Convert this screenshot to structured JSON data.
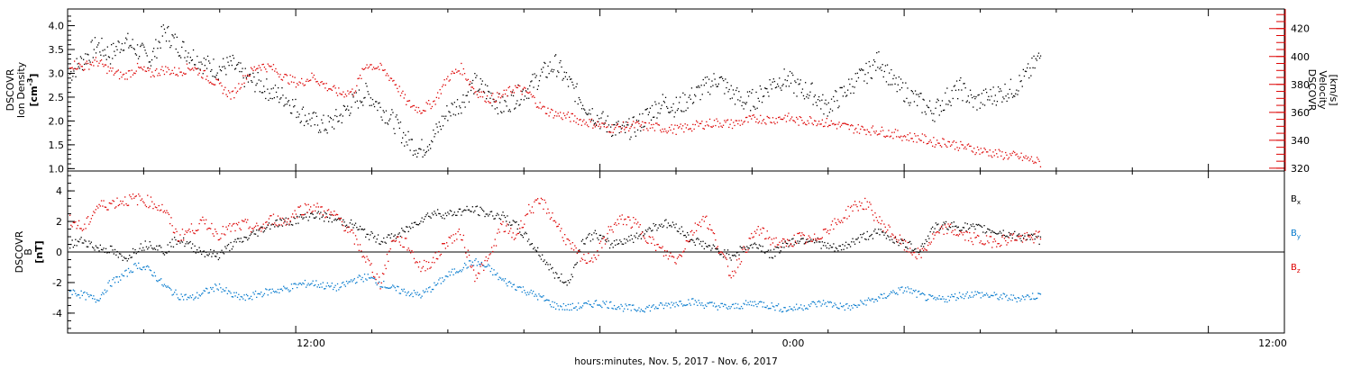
{
  "chart_data": [
    {
      "type": "scatter",
      "panel": "plasma",
      "ylabel_left": [
        "DSCOVR",
        "Ion Density",
        "[cm^-3]"
      ],
      "ylabel_right": [
        "DSCOVR",
        "Velocity",
        "[km/s]"
      ],
      "ylim_left": [
        0.95,
        4.35
      ],
      "ylim_right": [
        318,
        434
      ],
      "yticks_left": [
        "1.0",
        "1.5",
        "2.0",
        "2.5",
        "3.0",
        "3.5",
        "4.0"
      ],
      "yticks_right": [
        "320",
        "340",
        "360",
        "380",
        "400",
        "420"
      ],
      "colors": {
        "density": "#000000",
        "velocity": "#dd0000"
      },
      "series": [
        {
          "key": "density",
          "axis": "left",
          "x": [
            0.0,
            0.5,
            1.0,
            1.5,
            2.0,
            2.5,
            3.0,
            3.5,
            4.0,
            4.5,
            5.0,
            5.5,
            6.0,
            6.5,
            7.0,
            7.5,
            8.0,
            8.5,
            9.0,
            9.5,
            10.0,
            10.5,
            11.0,
            11.5,
            12.0,
            12.5,
            13.0,
            13.5,
            14.0,
            14.5,
            15.0,
            15.5,
            16.0,
            16.5,
            17.0,
            17.5,
            18.0,
            18.5,
            19.0,
            19.5,
            20.0,
            20.5,
            21.0,
            21.5,
            22.0,
            22.5,
            23.0,
            23.5,
            24.0,
            24.5,
            25.0,
            25.5,
            26.0,
            26.5,
            27.0,
            27.5,
            28.0,
            28.5,
            29.0,
            29.5,
            30.0,
            30.5,
            31.0,
            31.5,
            32.0,
            32.5,
            33.0,
            33.5,
            34.0,
            34.5,
            35.0,
            35.5,
            36.0
          ],
          "values": [
            3.0,
            3.3,
            3.6,
            3.4,
            3.7,
            3.5,
            3.3,
            3.9,
            3.6,
            3.4,
            3.2,
            3.1,
            3.2,
            2.9,
            2.8,
            2.6,
            2.5,
            2.2,
            2.0,
            1.9,
            2.1,
            2.4,
            2.6,
            2.3,
            2.0,
            1.6,
            1.4,
            1.7,
            2.2,
            2.4,
            2.8,
            2.6,
            2.3,
            2.5,
            2.7,
            3.0,
            3.2,
            2.8,
            2.4,
            2.1,
            1.9,
            1.8,
            1.9,
            2.2,
            2.4,
            2.3,
            2.5,
            2.7,
            2.9,
            2.6,
            2.4,
            2.5,
            2.8,
            2.9,
            2.7,
            2.6,
            2.3,
            2.5,
            2.8,
            3.0,
            3.3,
            2.8,
            2.6,
            2.4,
            2.2,
            2.5,
            2.7,
            2.4,
            2.5,
            2.6,
            2.7,
            3.0,
            3.4
          ]
        },
        {
          "key": "velocity",
          "axis": "right",
          "x": [
            0.0,
            0.5,
            1.0,
            1.5,
            2.0,
            2.5,
            3.0,
            3.5,
            4.0,
            4.5,
            5.0,
            5.5,
            6.0,
            6.5,
            7.0,
            7.5,
            8.0,
            8.5,
            9.0,
            9.5,
            10.0,
            10.5,
            11.0,
            11.5,
            12.0,
            12.5,
            13.0,
            13.5,
            14.0,
            14.5,
            15.0,
            15.5,
            16.0,
            16.5,
            17.0,
            17.5,
            18.0,
            18.5,
            19.0,
            19.5,
            20.0,
            20.5,
            21.0,
            21.5,
            22.0,
            22.5,
            23.0,
            23.5,
            24.0,
            24.5,
            25.0,
            25.5,
            26.0,
            26.5,
            27.0,
            27.5,
            28.0,
            28.5,
            29.0,
            29.5,
            30.0,
            30.5,
            31.0,
            31.5,
            32.0,
            32.5,
            33.0,
            33.5,
            34.0,
            34.5,
            35.0,
            35.5,
            36.0
          ],
          "values": [
            395,
            393,
            397,
            390,
            386,
            392,
            388,
            391,
            389,
            393,
            387,
            380,
            372,
            386,
            394,
            392,
            385,
            381,
            386,
            379,
            374,
            375,
            395,
            392,
            383,
            367,
            362,
            368,
            385,
            392,
            376,
            370,
            372,
            378,
            374,
            363,
            359,
            357,
            354,
            352,
            349,
            350,
            351,
            350,
            349,
            348,
            350,
            352,
            353,
            352,
            354,
            356,
            355,
            357,
            354,
            355,
            353,
            351,
            349,
            348,
            347,
            345,
            343,
            342,
            339,
            339,
            336,
            334,
            332,
            330,
            329,
            327,
            324
          ]
        }
      ]
    },
    {
      "type": "scatter",
      "panel": "magnetic",
      "ylabel_left": [
        "DSCOVR",
        "B",
        "[nT]"
      ],
      "ylim": [
        -5.3,
        5.3
      ],
      "yticks": [
        "-4",
        "-2",
        "0",
        "2",
        "4"
      ],
      "zero_line": true,
      "colors": {
        "Bx": "#000000",
        "By": "#0077cc",
        "Bz": "#dd0000"
      },
      "series": [
        {
          "name": "Bx",
          "x": [
            0.0,
            0.5,
            1.0,
            1.5,
            2.0,
            2.5,
            3.0,
            3.5,
            4.0,
            4.5,
            5.0,
            5.5,
            6.0,
            6.5,
            7.0,
            7.5,
            8.0,
            8.5,
            9.0,
            9.5,
            10.0,
            10.5,
            11.0,
            11.5,
            12.0,
            12.5,
            13.0,
            13.5,
            14.0,
            14.5,
            15.0,
            15.5,
            16.0,
            16.5,
            17.0,
            17.5,
            18.0,
            18.5,
            19.0,
            19.5,
            20.0,
            20.5,
            21.0,
            21.5,
            22.0,
            22.5,
            23.0,
            23.5,
            24.0,
            24.5,
            25.0,
            25.5,
            26.0,
            26.5,
            27.0,
            27.5,
            28.0,
            28.5,
            29.0,
            29.5,
            30.0,
            30.5,
            31.0,
            31.5,
            32.0,
            32.5,
            33.0,
            33.5,
            34.0,
            34.5,
            35.0,
            35.5,
            36.0
          ],
          "values": [
            0.5,
            0.8,
            0.3,
            0.2,
            -0.5,
            0.3,
            0.6,
            0.1,
            0.9,
            0.4,
            0.0,
            -0.2,
            0.5,
            0.9,
            1.4,
            1.9,
            2.0,
            2.2,
            2.5,
            2.3,
            2.1,
            1.8,
            1.2,
            0.8,
            1.0,
            1.5,
            2.2,
            2.6,
            2.5,
            2.7,
            2.8,
            2.5,
            2.4,
            1.8,
            0.8,
            -0.3,
            -1.5,
            -2.0,
            0.8,
            1.2,
            0.5,
            0.8,
            1.0,
            1.6,
            1.9,
            1.7,
            0.9,
            0.5,
            0.1,
            -0.2,
            0.3,
            0.5,
            -0.2,
            0.6,
            0.8,
            0.9,
            0.4,
            0.2,
            0.7,
            1.1,
            1.3,
            0.9,
            0.5,
            0.2,
            1.6,
            1.8,
            1.7,
            1.6,
            1.5,
            1.3,
            1.1,
            1.0,
            0.8
          ]
        },
        {
          "name": "By",
          "x": [
            0.0,
            0.5,
            1.0,
            1.5,
            2.0,
            2.5,
            3.0,
            3.5,
            4.0,
            4.5,
            5.0,
            5.5,
            6.0,
            6.5,
            7.0,
            7.5,
            8.0,
            8.5,
            9.0,
            9.5,
            10.0,
            10.5,
            11.0,
            11.5,
            12.0,
            12.5,
            13.0,
            13.5,
            14.0,
            14.5,
            15.0,
            15.5,
            16.0,
            16.5,
            17.0,
            17.5,
            18.0,
            18.5,
            19.0,
            19.5,
            20.0,
            20.5,
            21.0,
            21.5,
            22.0,
            22.5,
            23.0,
            23.5,
            24.0,
            24.5,
            25.0,
            25.5,
            26.0,
            26.5,
            27.0,
            27.5,
            28.0,
            28.5,
            29.0,
            29.5,
            30.0,
            30.5,
            31.0,
            31.5,
            32.0,
            32.5,
            33.0,
            33.5,
            34.0,
            34.5,
            35.0,
            35.5,
            36.0
          ],
          "values": [
            -2.5,
            -2.8,
            -3.1,
            -2.0,
            -1.5,
            -0.8,
            -1.2,
            -2.2,
            -2.8,
            -3.0,
            -2.6,
            -2.2,
            -2.8,
            -3.0,
            -2.7,
            -2.5,
            -2.4,
            -2.1,
            -2.0,
            -2.2,
            -2.3,
            -1.8,
            -1.6,
            -2.0,
            -2.4,
            -2.6,
            -2.8,
            -2.2,
            -1.5,
            -1.0,
            -0.6,
            -1.0,
            -1.8,
            -2.2,
            -2.6,
            -3.0,
            -3.5,
            -3.6,
            -3.5,
            -3.3,
            -3.4,
            -3.6,
            -3.7,
            -3.6,
            -3.5,
            -3.3,
            -3.2,
            -3.4,
            -3.5,
            -3.6,
            -3.4,
            -3.3,
            -3.5,
            -3.7,
            -3.6,
            -3.4,
            -3.3,
            -3.5,
            -3.6,
            -3.2,
            -3.0,
            -2.6,
            -2.4,
            -2.8,
            -3.1,
            -3.0,
            -2.8,
            -2.7,
            -2.8,
            -2.9,
            -3.0,
            -2.9,
            -2.8
          ]
        },
        {
          "name": "Bz",
          "x": [
            0.0,
            0.5,
            1.0,
            1.5,
            2.0,
            2.5,
            3.0,
            3.5,
            4.0,
            4.5,
            5.0,
            5.5,
            6.0,
            6.5,
            7.0,
            7.5,
            8.0,
            8.5,
            9.0,
            9.5,
            10.0,
            10.5,
            11.0,
            11.5,
            12.0,
            12.5,
            13.0,
            13.5,
            14.0,
            14.5,
            15.0,
            15.5,
            16.0,
            16.5,
            17.0,
            17.5,
            18.0,
            18.5,
            19.0,
            19.5,
            20.0,
            20.5,
            21.0,
            21.5,
            22.0,
            22.5,
            23.0,
            23.5,
            24.0,
            24.5,
            25.0,
            25.5,
            26.0,
            26.5,
            27.0,
            27.5,
            28.0,
            28.5,
            29.0,
            29.5,
            30.0,
            30.5,
            31.0,
            31.5,
            32.0,
            32.5,
            33.0,
            33.5,
            34.0,
            34.5,
            35.0,
            35.5,
            36.0
          ],
          "values": [
            2.2,
            1.5,
            3.0,
            3.2,
            3.4,
            3.5,
            3.3,
            2.8,
            1.0,
            1.5,
            2.0,
            1.2,
            1.6,
            1.8,
            1.5,
            2.2,
            2.0,
            2.8,
            3.0,
            2.6,
            2.2,
            1.0,
            -0.5,
            -2.0,
            1.0,
            0.5,
            -1.0,
            -0.5,
            0.8,
            1.2,
            -1.5,
            -0.5,
            1.8,
            1.0,
            2.8,
            3.3,
            2.0,
            0.5,
            -0.5,
            -0.2,
            1.5,
            2.2,
            1.8,
            0.8,
            0.0,
            -0.5,
            1.2,
            2.4,
            0.5,
            -1.5,
            0.2,
            1.5,
            0.8,
            0.5,
            1.0,
            0.7,
            1.5,
            2.0,
            3.0,
            3.2,
            2.0,
            1.2,
            0.3,
            -0.2,
            1.0,
            1.6,
            1.2,
            0.9,
            0.7,
            0.8,
            1.0,
            0.9,
            1.1
          ]
        }
      ]
    }
  ],
  "x_axis": {
    "tick_labels": [
      "12:00",
      "0:00",
      "12:00"
    ],
    "title": "hours:minutes, Nov.  5, 2017 - Nov.  6, 2017"
  },
  "legend": {
    "Bx": "B",
    "Bx_sub": "x",
    "By": "B",
    "By_sub": "y",
    "Bz": "B",
    "Bz_sub": "z"
  }
}
